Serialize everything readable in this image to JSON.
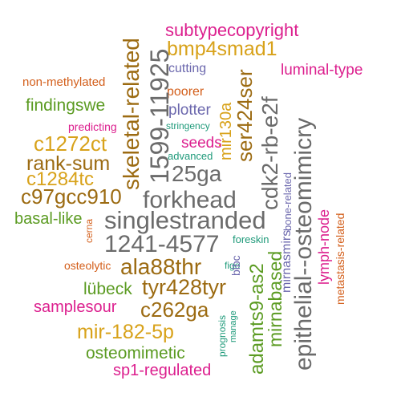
{
  "colors": {
    "gray": "#6b6b6b",
    "brown": "#9c6b12",
    "gold": "#d8a21a",
    "magenta": "#dc1f8e",
    "green": "#5b9b22",
    "orange": "#d35e1a",
    "purple": "#6b67ad",
    "teal": "#1f9a7a"
  },
  "words": [
    {
      "text": "subtypecopyright",
      "color": "magenta"
    },
    {
      "text": "bmp4smad1",
      "color": "gold"
    },
    {
      "text": "cutting",
      "color": "purple"
    },
    {
      "text": "luminal-type",
      "color": "magenta"
    },
    {
      "text": "non-methylated",
      "color": "orange"
    },
    {
      "text": "poorer",
      "color": "orange"
    },
    {
      "text": "findingswe",
      "color": "green"
    },
    {
      "text": "plotter",
      "color": "purple"
    },
    {
      "text": "predicting",
      "color": "magenta"
    },
    {
      "text": "stringency",
      "color": "teal"
    },
    {
      "text": "c1272ct",
      "color": "gold"
    },
    {
      "text": "seeds",
      "color": "magenta"
    },
    {
      "text": "rank-sum",
      "color": "brown"
    },
    {
      "text": "advanced",
      "color": "teal"
    },
    {
      "text": "c1284tc",
      "color": "gold"
    },
    {
      "text": "25ga",
      "color": "gray"
    },
    {
      "text": "c97gcc910",
      "color": "brown"
    },
    {
      "text": "forkhead",
      "color": "gray"
    },
    {
      "text": "basal-like",
      "color": "green"
    },
    {
      "text": "singlestranded",
      "color": "gray"
    },
    {
      "text": "cerna",
      "color": "orange"
    },
    {
      "text": "1241-4577",
      "color": "gray"
    },
    {
      "text": "foreskin",
      "color": "teal"
    },
    {
      "text": "osteolytic",
      "color": "orange"
    },
    {
      "text": "ala88thr",
      "color": "brown"
    },
    {
      "text": "blbc",
      "color": "purple"
    },
    {
      "text": "figo",
      "color": "teal"
    },
    {
      "text": "lübeck",
      "color": "green"
    },
    {
      "text": "tyr428tyr",
      "color": "brown"
    },
    {
      "text": "samplesour",
      "color": "magenta"
    },
    {
      "text": "c262ga",
      "color": "brown"
    },
    {
      "text": "mir-182-5p",
      "color": "gold"
    },
    {
      "text": "osteomimetic",
      "color": "green"
    },
    {
      "text": "sp1-regulated",
      "color": "magenta"
    },
    {
      "text": "skeletal-related",
      "color": "brown"
    },
    {
      "text": "1599-11925",
      "color": "gray"
    },
    {
      "text": "mir130a",
      "color": "gold"
    },
    {
      "text": "ser424ser",
      "color": "brown"
    },
    {
      "text": "cdk2-rb-e2f",
      "color": "gray"
    },
    {
      "text": "epithelial--osteomimicry",
      "color": "gray"
    },
    {
      "text": "bone-related",
      "color": "purple"
    },
    {
      "text": "lymph-node",
      "color": "magenta"
    },
    {
      "text": "metastasis-related",
      "color": "orange"
    },
    {
      "text": "mirnabased",
      "color": "green"
    },
    {
      "text": "mirnasmirs",
      "color": "purple"
    },
    {
      "text": "adamts9-as2",
      "color": "green"
    },
    {
      "text": "prognosis",
      "color": "teal"
    },
    {
      "text": "manage",
      "color": "teal"
    }
  ]
}
